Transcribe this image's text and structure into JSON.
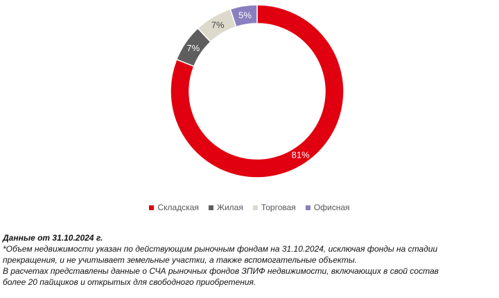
{
  "chart_data": {
    "type": "pie",
    "variant": "donut",
    "categories": [
      "Складская",
      "Жилая",
      "Торговая",
      "Офисная"
    ],
    "values": [
      81,
      7,
      7,
      5
    ],
    "labels": [
      "81%",
      "7%",
      "7%",
      "5%"
    ],
    "colors": [
      "#e0000f",
      "#5e5e5e",
      "#ddd9cc",
      "#8a7fc0"
    ],
    "label_colors": [
      "#ffffff",
      "#ffffff",
      "#444444",
      "#ffffff"
    ],
    "legend_position": "bottom"
  },
  "notes": {
    "date_line": "Данные от 31.10.2024 г.",
    "line1": "*Объем недвижимости указан по действующим рыночным фондам на 31.10.2024, исключая фонды на стадии",
    "line2": "прекращения, и не учитывает земельные участки, а также вспомогательные объекты.",
    "line3": "В расчетах представлены данные о СЧА рыночных фондов ЗПИФ недвижимости, включающих в свой состав",
    "line4": "более 20 пайщиков и открытых для свободного приобретения."
  }
}
